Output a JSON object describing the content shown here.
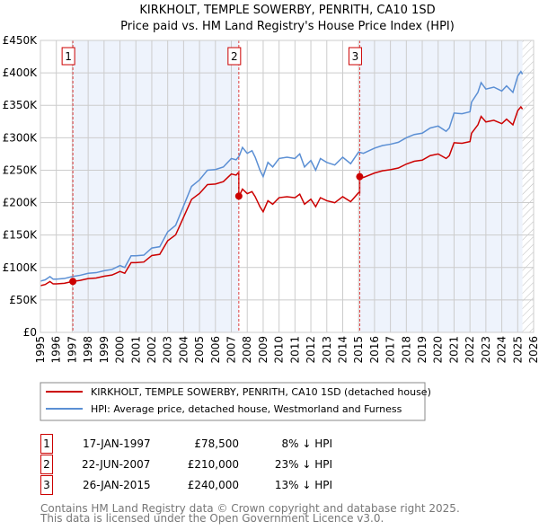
{
  "chart_data": {
    "type": "line",
    "title": "KIRKHOLT, TEMPLE SOWERBY, PENRITH, CA10 1SD",
    "subtitle": "Price paid vs. HM Land Registry's House Price Index (HPI)",
    "xlim": [
      1995,
      2026
    ],
    "ylim": [
      0,
      450000
    ],
    "x_ticks": [
      "1995",
      "1996",
      "1997",
      "1998",
      "1999",
      "2000",
      "2001",
      "2002",
      "2003",
      "2004",
      "2005",
      "2006",
      "2007",
      "2008",
      "2009",
      "2010",
      "2011",
      "2012",
      "2013",
      "2014",
      "2015",
      "2016",
      "2017",
      "2018",
      "2019",
      "2020",
      "2021",
      "2022",
      "2023",
      "2024",
      "2025",
      "2026"
    ],
    "y_ticks": [
      {
        "value": 0,
        "label": "£0"
      },
      {
        "value": 50000,
        "label": "£50K"
      },
      {
        "value": 100000,
        "label": "£100K"
      },
      {
        "value": 150000,
        "label": "£150K"
      },
      {
        "value": 200000,
        "label": "£200K"
      },
      {
        "value": 250000,
        "label": "£250K"
      },
      {
        "value": 300000,
        "label": "£300K"
      },
      {
        "value": 350000,
        "label": "£350K"
      },
      {
        "value": 400000,
        "label": "£400K"
      },
      {
        "value": 450000,
        "label": "£450K"
      }
    ],
    "grid": true,
    "data_end_year": 2025.3,
    "series": [
      {
        "name": "HPI: Average price, detached house, Westmorland and Furness",
        "color": "#5b8fd4",
        "x": [
          1995.0,
          1995.3,
          1995.6,
          1995.8,
          1996.0,
          1996.5,
          1997.0,
          1997.5,
          1998.0,
          1998.5,
          1999.0,
          1999.5,
          2000.0,
          2000.3,
          2000.7,
          2001.0,
          2001.5,
          2002.0,
          2002.5,
          2003.0,
          2003.5,
          2004.0,
          2004.5,
          2005.0,
          2005.5,
          2006.0,
          2006.5,
          2007.0,
          2007.3,
          2007.5,
          2007.7,
          2008.0,
          2008.3,
          2008.5,
          2008.8,
          2009.0,
          2009.3,
          2009.6,
          2010.0,
          2010.5,
          2011.0,
          2011.3,
          2011.6,
          2012.0,
          2012.3,
          2012.6,
          2013.0,
          2013.5,
          2014.0,
          2014.5,
          2015.0,
          2015.3,
          2016.0,
          2016.5,
          2017.0,
          2017.5,
          2018.0,
          2018.5,
          2019.0,
          2019.5,
          2020.0,
          2020.5,
          2020.7,
          2021.0,
          2021.5,
          2022.0,
          2022.1,
          2022.5,
          2022.7,
          2023.0,
          2023.5,
          2024.0,
          2024.3,
          2024.7,
          2025.0,
          2025.2,
          2025.3
        ],
        "values": [
          79000,
          81000,
          86000,
          82000,
          82000,
          83000,
          86000,
          88000,
          91000,
          92000,
          95000,
          97000,
          103000,
          100000,
          118000,
          118000,
          119000,
          130000,
          132000,
          155000,
          165000,
          195000,
          225000,
          235000,
          250000,
          251000,
          255000,
          268000,
          266000,
          272000,
          285000,
          276000,
          280000,
          270000,
          250000,
          240000,
          262000,
          255000,
          268000,
          270000,
          268000,
          275000,
          255000,
          265000,
          250000,
          268000,
          262000,
          258000,
          270000,
          260000,
          278000,
          276000,
          284000,
          288000,
          290000,
          293000,
          300000,
          305000,
          307000,
          315000,
          318000,
          310000,
          315000,
          338000,
          337000,
          340000,
          355000,
          370000,
          385000,
          375000,
          378000,
          372000,
          380000,
          370000,
          395000,
          402000,
          398000
        ]
      },
      {
        "name": "KIRKHOLT, TEMPLE SOWERBY, PENRITH, CA10 1SD (detached house)",
        "color": "#cc0000",
        "derived_from": "HPI indexed to each sale"
      }
    ],
    "sales": [
      {
        "id": "1",
        "x": 1997.04,
        "date": "17-JAN-1997",
        "price": 78500,
        "price_label": "£78,500",
        "vs_hpi": "8% ↓ HPI"
      },
      {
        "id": "2",
        "x": 2007.47,
        "date": "22-JUN-2007",
        "price": 210000,
        "price_label": "£210,000",
        "vs_hpi": "23% ↓ HPI"
      },
      {
        "id": "3",
        "x": 2015.07,
        "date": "26-JAN-2015",
        "price": 240000,
        "price_label": "£240,000",
        "vs_hpi": "13% ↓ HPI"
      }
    ],
    "legend": {
      "placement": "below",
      "items": [
        "KIRKHOLT, TEMPLE SOWERBY, PENRITH, CA10 1SD (detached house)",
        "HPI: Average price, detached house, Westmorland and Furness"
      ]
    }
  },
  "footer": {
    "line1": "Contains HM Land Registry data © Crown copyright and database right 2025.",
    "line2": "This data is licensed under the Open Government Licence v3.0."
  }
}
